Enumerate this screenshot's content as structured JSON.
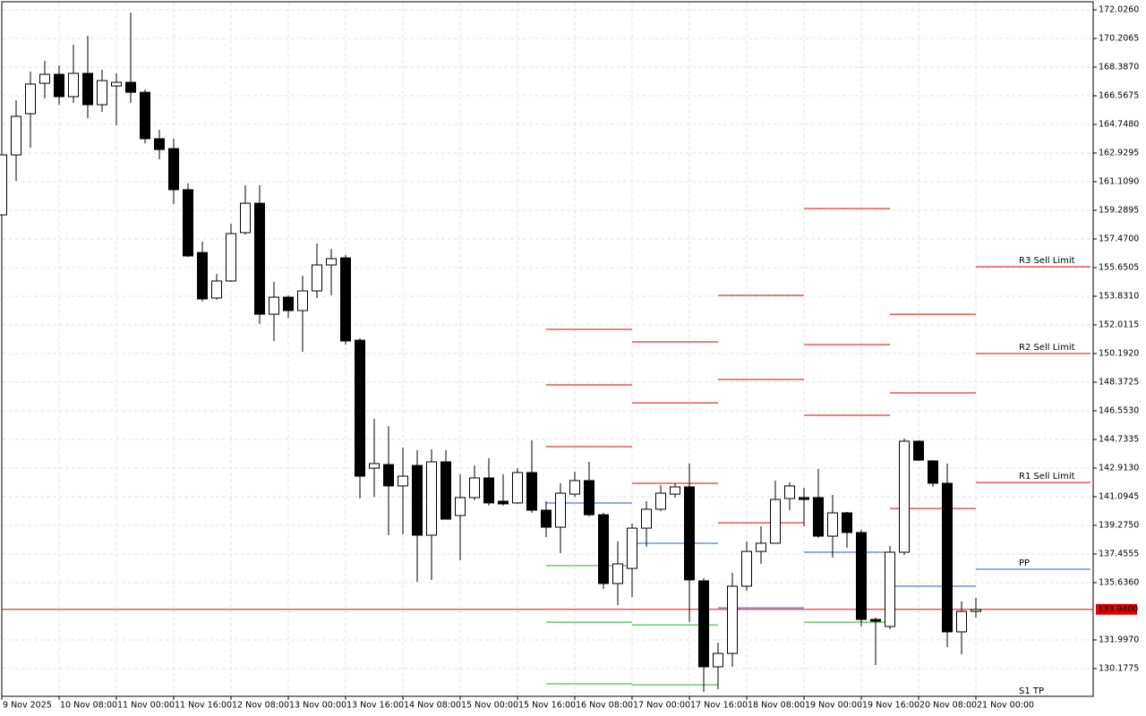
{
  "chart_data": {
    "type": "candlestick",
    "categories": [
      "9 Nov 2025",
      null,
      null,
      null,
      "10 Nov 08:00",
      null,
      null,
      null,
      "11 Nov 00:00",
      null,
      null,
      null,
      "11 Nov 16:00",
      null,
      null,
      null,
      "12 Nov 08:00",
      null,
      null,
      null,
      "13 Nov 00:00",
      null,
      null,
      null,
      "13 Nov 16:00",
      null,
      null,
      null,
      "14 Nov 08:00",
      null,
      null,
      null,
      "15 Nov 00:00",
      null,
      null,
      null,
      "15 Nov 16:00",
      null,
      null,
      null,
      "16 Nov 08:00",
      null,
      null,
      null,
      "17 Nov 00:00",
      null,
      null,
      null,
      "17 Nov 16:00",
      null,
      null,
      null,
      "18 Nov 08:00",
      null,
      null,
      null,
      "19 Nov 00:00",
      null,
      null,
      null,
      "19 Nov 16:00",
      null,
      null,
      null,
      "20 Nov 08:00",
      null,
      null,
      null,
      "21 Nov 00:00"
    ],
    "open": [
      159.0,
      162.81,
      165.43,
      167.36,
      167.93,
      166.51,
      167.99,
      166.0,
      167.19,
      167.42,
      166.79,
      163.84,
      163.21,
      160.6,
      156.61,
      153.72,
      154.8,
      157.87,
      159.74,
      152.69,
      153.77,
      152.92,
      154.17,
      155.82,
      156.27,
      151.04,
      142.91,
      143.14,
      141.78,
      143.08,
      138.65,
      143.31,
      139.9,
      141.04,
      142.29,
      140.81,
      140.7,
      142.63,
      140.24,
      139.16,
      141.26,
      142.12,
      139.95,
      135.58,
      136.54,
      139.1,
      140.3,
      141.26,
      141.72,
      135.75,
      130.29,
      131.14,
      135.41,
      137.62,
      138.14,
      140.98,
      141.04,
      141.04,
      138.59,
      140.07,
      138.82,
      133.3,
      132.85,
      137.57,
      144.62,
      143.37,
      141.95,
      132.51,
      133.81
    ],
    "high": [
      162.98,
      166.28,
      168.1,
      168.78,
      168.5,
      169.81,
      170.38,
      168.22,
      167.99,
      171.85,
      166.96,
      164.41,
      163.84,
      161.0,
      157.3,
      155.25,
      158.44,
      160.88,
      160.88,
      154.74,
      153.89,
      155.14,
      157.18,
      156.84,
      156.45,
      151.16,
      146.04,
      145.58,
      144.22,
      144.05,
      144.11,
      144.05,
      142.52,
      143.08,
      143.54,
      142.52,
      142.91,
      144.68,
      140.81,
      141.95,
      142.69,
      143.31,
      140.07,
      138.25,
      139.39,
      140.81,
      141.83,
      141.95,
      143.2,
      135.92,
      131.83,
      136.26,
      138.25,
      139.22,
      142.12,
      142.0,
      141.66,
      142.86,
      141.21,
      140.13,
      138.99,
      133.42,
      137.97,
      144.79,
      144.68,
      143.42,
      143.2,
      134.44,
      134.68
    ],
    "low": [
      158.89,
      161.16,
      163.27,
      166.4,
      166.0,
      166.11,
      165.14,
      165.54,
      164.69,
      166.11,
      163.55,
      162.53,
      159.69,
      156.33,
      153.49,
      153.6,
      154.74,
      157.75,
      152.07,
      150.99,
      152.46,
      150.3,
      153.72,
      153.89,
      150.76,
      140.98,
      141.09,
      138.65,
      138.7,
      135.69,
      135.81,
      139.67,
      137.06,
      140.87,
      140.53,
      140.53,
      140.64,
      140.07,
      138.53,
      137.51,
      141.09,
      139.84,
      135.24,
      134.21,
      134.72,
      137.91,
      140.18,
      141.04,
      133.13,
      128.7,
      128.87,
      130.29,
      135.12,
      136.83,
      138.14,
      140.24,
      139.22,
      138.48,
      137.23,
      137.85,
      132.85,
      130.4,
      132.68,
      137.4,
      143.37,
      141.72,
      131.54,
      131.09,
      133.42
    ],
    "close": [
      162.81,
      165.26,
      167.31,
      167.93,
      166.51,
      167.99,
      166.0,
      167.53,
      167.42,
      166.79,
      163.84,
      163.15,
      160.6,
      156.39,
      153.66,
      154.8,
      157.81,
      159.74,
      152.69,
      153.77,
      152.92,
      154.17,
      155.82,
      156.22,
      150.99,
      142.4,
      143.2,
      141.78,
      142.4,
      138.65,
      143.31,
      139.67,
      141.04,
      142.29,
      140.7,
      140.64,
      142.63,
      140.24,
      139.16,
      141.32,
      142.12,
      139.95,
      135.58,
      136.83,
      139.1,
      140.3,
      141.32,
      141.72,
      135.81,
      130.29,
      131.14,
      135.41,
      137.62,
      138.14,
      140.92,
      141.78,
      140.92,
      138.59,
      140.07,
      138.82,
      133.3,
      133.19,
      137.57,
      144.62,
      143.42,
      141.95,
      132.51,
      133.81,
      133.93
    ],
    "bull_color": "#ffffff",
    "bear_color": "#000000",
    "pivots": [
      {
        "label": "R3 Sell Limit",
        "color": "#e00000",
        "values": [
          null,
          null,
          null,
          null,
          null,
          null,
          null,
          null,
          null,
          null,
          null,
          null,
          null,
          null,
          null,
          null,
          null,
          null,
          null,
          null,
          null,
          null,
          null,
          null,
          null,
          null,
          null,
          null,
          null,
          null,
          null,
          null,
          null,
          null,
          null,
          null,
          null,
          null,
          151.73,
          null,
          null,
          null,
          null,
          null,
          150.93,
          null,
          null,
          null,
          null,
          null,
          153.89,
          null,
          null,
          null,
          null,
          null,
          159.4,
          null,
          null,
          null,
          null,
          null,
          152.69,
          null,
          null,
          null,
          null,
          null,
          155.71
        ]
      },
      {
        "label": "R2 Sell Limit",
        "color": "#e00000",
        "values": [
          null,
          null,
          null,
          null,
          null,
          null,
          null,
          null,
          null,
          null,
          null,
          null,
          null,
          null,
          null,
          null,
          null,
          null,
          null,
          null,
          null,
          null,
          null,
          null,
          null,
          null,
          null,
          null,
          null,
          null,
          null,
          null,
          null,
          null,
          null,
          null,
          null,
          null,
          148.2,
          null,
          null,
          null,
          null,
          null,
          147.06,
          null,
          null,
          null,
          null,
          null,
          148.54,
          null,
          null,
          null,
          null,
          null,
          150.76,
          null,
          null,
          null,
          null,
          null,
          147.69,
          null,
          null,
          null,
          null,
          null,
          150.19
        ]
      },
      {
        "label": "R1 Sell Limit",
        "color": "#e00000",
        "values": [
          null,
          null,
          null,
          null,
          null,
          null,
          null,
          null,
          null,
          null,
          null,
          null,
          null,
          null,
          null,
          null,
          null,
          null,
          null,
          null,
          null,
          null,
          null,
          null,
          null,
          null,
          null,
          null,
          null,
          null,
          null,
          null,
          null,
          null,
          null,
          null,
          null,
          null,
          144.28,
          null,
          null,
          null,
          null,
          null,
          141.95,
          null,
          null,
          null,
          null,
          null,
          139.44,
          null,
          null,
          null,
          null,
          null,
          146.27,
          null,
          null,
          null,
          null,
          null,
          140.35,
          null,
          null,
          null,
          null,
          null,
          142.0
        ]
      },
      {
        "label": "PP",
        "color": "#1f5fbf",
        "values": [
          null,
          null,
          null,
          null,
          null,
          null,
          null,
          null,
          null,
          null,
          null,
          null,
          null,
          null,
          null,
          null,
          null,
          null,
          null,
          null,
          null,
          null,
          null,
          null,
          null,
          null,
          null,
          null,
          null,
          null,
          null,
          null,
          null,
          null,
          null,
          null,
          null,
          null,
          140.7,
          null,
          null,
          null,
          null,
          null,
          138.14,
          null,
          null,
          null,
          null,
          null,
          134.04,
          null,
          null,
          null,
          null,
          null,
          137.57,
          null,
          null,
          null,
          null,
          null,
          135.41,
          null,
          null,
          null,
          null,
          null,
          136.49
        ]
      },
      {
        "label": "S1 TP",
        "color": "#22b022",
        "values": [
          null,
          null,
          null,
          null,
          null,
          null,
          null,
          null,
          null,
          null,
          null,
          null,
          null,
          null,
          null,
          null,
          null,
          null,
          null,
          null,
          null,
          null,
          null,
          null,
          null,
          null,
          null,
          null,
          null,
          null,
          null,
          null,
          null,
          null,
          null,
          null,
          null,
          null,
          136.72,
          null,
          null,
          null,
          null,
          null,
          132.96,
          null,
          null,
          null,
          null,
          null,
          null,
          null,
          null,
          null,
          null,
          null,
          133.13,
          null,
          null,
          null,
          null,
          null,
          null,
          null,
          null,
          null,
          null,
          null,
          null
        ]
      },
      {
        "color": "#22b022",
        "values": [
          null,
          null,
          null,
          null,
          null,
          null,
          null,
          null,
          null,
          null,
          null,
          null,
          null,
          null,
          null,
          null,
          null,
          null,
          null,
          null,
          null,
          null,
          null,
          null,
          null,
          null,
          null,
          null,
          null,
          null,
          null,
          null,
          null,
          null,
          null,
          null,
          null,
          null,
          133.13,
          null,
          null,
          null,
          null,
          null,
          129.15,
          null,
          null,
          null,
          null,
          null,
          null,
          null,
          null,
          null,
          null,
          null,
          null,
          null,
          null,
          null,
          null,
          null,
          null,
          null,
          null,
          null,
          null,
          null,
          null
        ]
      },
      {
        "color": "#22b022",
        "values": [
          null,
          null,
          null,
          null,
          null,
          null,
          null,
          null,
          null,
          null,
          null,
          null,
          null,
          null,
          null,
          null,
          null,
          null,
          null,
          null,
          null,
          null,
          null,
          null,
          null,
          null,
          null,
          null,
          null,
          null,
          null,
          null,
          null,
          null,
          null,
          null,
          null,
          null,
          129.21,
          null,
          null,
          null,
          null,
          null,
          null,
          null,
          null,
          null,
          null,
          null,
          null,
          null,
          null,
          null,
          null,
          null,
          null,
          null,
          null,
          null,
          null,
          null,
          null,
          null,
          null,
          null,
          null,
          null,
          null
        ]
      }
    ],
    "current_price": {
      "value": 133.94,
      "label": "133.9400",
      "color": "#e00000"
    },
    "ylim": [
      128.415,
      172.481
    ],
    "yticks": [
      {
        "value": 172.026,
        "label": "172.0260"
      },
      {
        "value": 170.2065,
        "label": "170.2065"
      },
      {
        "value": 168.387,
        "label": "168.3870"
      },
      {
        "value": 166.5675,
        "label": "166.5675"
      },
      {
        "value": 164.748,
        "label": "164.7480"
      },
      {
        "value": 162.9295,
        "label": "162.9295"
      },
      {
        "value": 161.109,
        "label": "161.1090"
      },
      {
        "value": 159.2895,
        "label": "159.2895"
      },
      {
        "value": 157.47,
        "label": "157.4700"
      },
      {
        "value": 155.6505,
        "label": "155.6505"
      },
      {
        "value": 153.831,
        "label": "153.8310"
      },
      {
        "value": 152.0115,
        "label": "152.0115"
      },
      {
        "value": 150.192,
        "label": "150.1920"
      },
      {
        "value": 148.3725,
        "label": "148.3725"
      },
      {
        "value": 146.553,
        "label": "146.5530"
      },
      {
        "value": 144.7335,
        "label": "144.7335"
      },
      {
        "value": 142.913,
        "label": "142.9130"
      },
      {
        "value": 141.0945,
        "label": "141.0945"
      },
      {
        "value": 139.275,
        "label": "139.2750"
      },
      {
        "value": 137.4555,
        "label": "137.4555"
      },
      {
        "value": 135.636,
        "label": "135.6360"
      },
      {
        "value": 131.997,
        "label": "131.9970"
      },
      {
        "value": 130.1775,
        "label": "130.1775"
      }
    ],
    "grid": true
  }
}
